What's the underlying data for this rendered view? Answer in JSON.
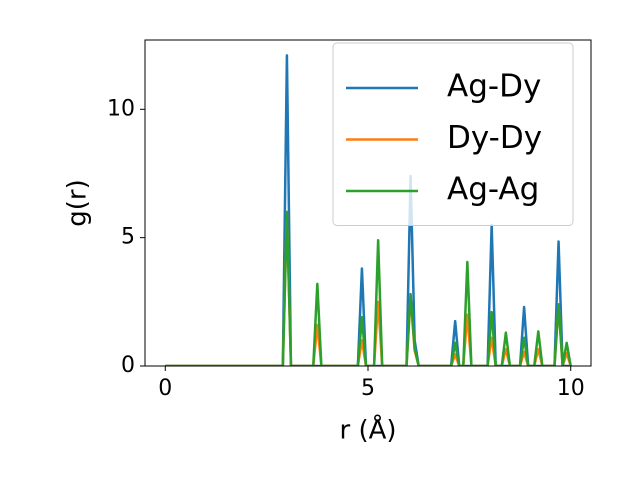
{
  "chart_data": {
    "type": "line",
    "xlabel": "r (Å)",
    "ylabel": "g(r)",
    "x": [
      0,
      2.9,
      3.0,
      3.1,
      3.65,
      3.75,
      3.85,
      4.75,
      4.85,
      4.95,
      5.15,
      5.25,
      5.35,
      5.95,
      6.05,
      6.15,
      6.25,
      7.05,
      7.15,
      7.25,
      7.35,
      7.45,
      7.55,
      7.95,
      8.05,
      8.15,
      8.3,
      8.4,
      8.5,
      8.75,
      8.85,
      8.95,
      9.1,
      9.2,
      9.3,
      9.6,
      9.7,
      9.8,
      9.9,
      10.0
    ],
    "series": [
      {
        "name": "Ag-Dy",
        "color": "#1f77b4",
        "values": [
          0,
          0,
          12.1,
          0,
          0,
          0,
          0,
          0,
          3.8,
          0,
          0,
          0,
          0,
          0,
          7.4,
          1.0,
          0,
          0,
          1.75,
          0,
          0,
          0,
          0,
          0,
          5.5,
          0,
          0,
          0,
          0,
          0,
          2.3,
          0,
          0,
          0,
          0,
          0,
          4.85,
          0,
          0,
          0
        ]
      },
      {
        "name": "Dy-Dy",
        "color": "#ff7f0e",
        "values": [
          0,
          0,
          6.0,
          0,
          0,
          1.6,
          0,
          0,
          1.0,
          0,
          0,
          2.5,
          0,
          0,
          2.7,
          0.6,
          0,
          0,
          0.45,
          0,
          0,
          2.0,
          0,
          0,
          1.1,
          0,
          0,
          0.65,
          0,
          0,
          0.55,
          0,
          0,
          0.65,
          0,
          0,
          2.4,
          0,
          0.5,
          0
        ]
      },
      {
        "name": "Ag-Ag",
        "color": "#2ca02c",
        "values": [
          0,
          0,
          6.0,
          0,
          0,
          3.2,
          0,
          0,
          1.9,
          0,
          0,
          4.9,
          0,
          0,
          2.8,
          0.7,
          0,
          0,
          0.9,
          0,
          0,
          4.05,
          0,
          0,
          2.1,
          0,
          0,
          1.3,
          0,
          0,
          1.1,
          0,
          0,
          1.35,
          0,
          0,
          2.4,
          0,
          0.9,
          0
        ]
      }
    ],
    "xlim": [
      -0.5,
      10.5
    ],
    "xticks": [
      0,
      5,
      10
    ],
    "ylim": [
      0,
      12.7
    ],
    "yticks": [
      0,
      5,
      10
    ],
    "grid": false,
    "legend": "upper right"
  }
}
